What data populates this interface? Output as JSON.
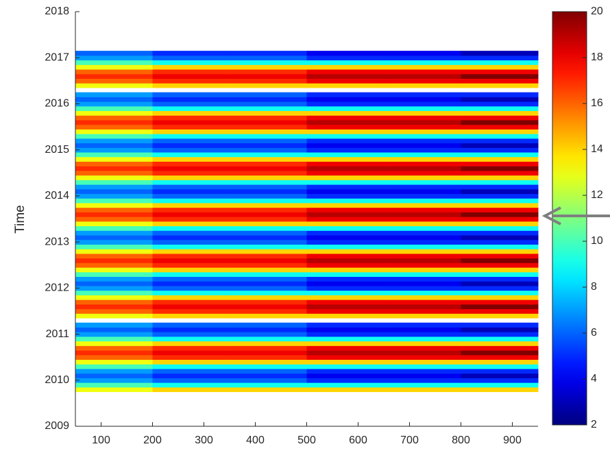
{
  "chart_data": {
    "type": "heatmap",
    "y_label": "Time",
    "colormap": "jet",
    "x": [
      125,
      275,
      425,
      575,
      725,
      875
    ],
    "y": [
      2009.8,
      2009.9,
      2010.0,
      2010.1,
      2010.2,
      2010.3,
      2010.4,
      2010.5,
      2010.6,
      2010.7,
      2010.8,
      2010.9,
      2011.0,
      2011.1,
      2011.2,
      2011.3,
      2011.4,
      2011.5,
      2011.6,
      2011.7,
      2011.8,
      2011.9,
      2012.0,
      2012.1,
      2012.2,
      2012.3,
      2012.4,
      2012.5,
      2012.6,
      2012.7,
      2012.8,
      2012.9,
      2013.0,
      2013.1,
      2013.2,
      2013.3,
      2013.4,
      2013.5,
      2013.6,
      2013.7,
      2013.8,
      2013.9,
      2014.0,
      2014.1,
      2014.2,
      2014.3,
      2014.4,
      2014.5,
      2014.6,
      2014.7,
      2014.8,
      2014.9,
      2015.0,
      2015.1,
      2015.2,
      2015.3,
      2015.4,
      2015.5,
      2015.6,
      2015.7,
      2015.8,
      2015.9,
      2016.0,
      2016.1,
      2016.2,
      2016.3,
      2016.4,
      2016.5,
      2016.6,
      2016.7,
      2016.8,
      2016.9,
      2017.0,
      2017.1
    ],
    "z": [
      [
        13,
        14,
        14,
        14,
        14,
        14
      ],
      [
        10,
        9,
        9,
        9,
        9,
        9
      ],
      [
        7,
        6,
        6,
        5,
        5,
        5
      ],
      [
        6,
        5,
        5,
        4,
        4,
        3
      ],
      [
        7,
        6,
        6,
        5,
        5,
        5
      ],
      [
        10,
        9,
        9,
        9,
        9,
        9
      ],
      [
        13,
        14,
        14,
        14,
        14,
        14
      ],
      [
        16,
        17,
        17,
        18,
        18,
        18
      ],
      [
        17,
        18,
        18,
        19,
        19,
        20
      ],
      [
        16,
        17,
        17,
        18,
        18,
        18
      ],
      [
        13,
        14,
        14,
        14,
        14,
        14
      ],
      [
        10,
        9,
        9,
        9,
        9,
        9
      ],
      [
        7,
        6,
        6,
        5,
        5,
        5
      ],
      [
        6,
        5,
        5,
        4,
        4,
        3
      ],
      [
        7,
        6,
        6,
        5,
        5,
        5
      ],
      [
        null,
        null,
        null,
        null,
        null,
        null
      ],
      [
        13,
        14,
        14,
        14,
        14,
        14
      ],
      [
        16,
        17,
        17,
        18,
        18,
        18
      ],
      [
        17,
        18,
        18,
        19,
        19,
        20
      ],
      [
        16,
        17,
        17,
        18,
        18,
        18
      ],
      [
        13,
        14,
        14,
        14,
        14,
        14
      ],
      [
        10,
        9,
        9,
        9,
        9,
        9
      ],
      [
        7,
        6,
        6,
        5,
        5,
        5
      ],
      [
        6,
        5,
        5,
        4,
        4,
        3
      ],
      [
        7,
        6,
        6,
        5,
        5,
        5
      ],
      [
        10,
        9,
        9,
        9,
        9,
        9
      ],
      [
        13,
        14,
        14,
        14,
        14,
        14
      ],
      [
        16,
        17,
        17,
        18,
        18,
        18
      ],
      [
        17,
        18,
        18,
        19,
        19,
        20
      ],
      [
        16,
        17,
        17,
        18,
        18,
        18
      ],
      [
        13,
        14,
        14,
        14,
        14,
        14
      ],
      [
        10,
        9,
        9,
        9,
        9,
        9
      ],
      [
        7,
        6,
        6,
        5,
        5,
        5
      ],
      [
        6,
        5,
        5,
        4,
        4,
        3
      ],
      [
        7,
        6,
        6,
        5,
        5,
        5
      ],
      [
        10,
        9,
        9,
        9,
        9,
        9
      ],
      [
        13,
        14,
        14,
        14,
        14,
        14
      ],
      [
        16,
        17,
        17,
        18,
        18,
        18
      ],
      [
        17,
        18,
        18,
        19,
        19,
        20
      ],
      [
        16,
        17,
        17,
        18,
        18,
        18
      ],
      [
        13,
        14,
        14,
        14,
        14,
        14
      ],
      [
        10,
        9,
        9,
        9,
        9,
        9
      ],
      [
        7,
        6,
        6,
        5,
        5,
        5
      ],
      [
        6,
        5,
        5,
        4,
        4,
        3
      ],
      [
        7,
        6,
        6,
        5,
        5,
        5
      ],
      [
        10,
        9,
        9,
        9,
        9,
        9
      ],
      [
        13,
        14,
        14,
        14,
        14,
        14
      ],
      [
        16,
        17,
        17,
        18,
        18,
        18
      ],
      [
        17,
        18,
        18,
        19,
        19,
        20
      ],
      [
        16,
        17,
        17,
        18,
        18,
        18
      ],
      [
        13,
        14,
        14,
        14,
        14,
        14
      ],
      [
        10,
        9,
        9,
        9,
        9,
        9
      ],
      [
        7,
        6,
        6,
        5,
        5,
        5
      ],
      [
        6,
        5,
        5,
        4,
        4,
        3
      ],
      [
        7,
        6,
        6,
        5,
        5,
        5
      ],
      [
        10,
        9,
        9,
        9,
        9,
        9
      ],
      [
        13,
        14,
        14,
        14,
        14,
        14
      ],
      [
        16,
        17,
        17,
        18,
        18,
        18
      ],
      [
        17,
        18,
        18,
        19,
        19,
        20
      ],
      [
        16,
        17,
        17,
        18,
        18,
        18
      ],
      [
        13,
        14,
        14,
        14,
        14,
        14
      ],
      [
        10,
        9,
        9,
        9,
        9,
        9
      ],
      [
        7,
        6,
        6,
        5,
        5,
        5
      ],
      [
        6,
        5,
        5,
        4,
        4,
        3
      ],
      [
        7,
        6,
        6,
        5,
        5,
        5
      ],
      [
        null,
        null,
        null,
        null,
        null,
        null
      ],
      [
        13,
        14,
        14,
        14,
        14,
        14
      ],
      [
        16,
        17,
        17,
        18,
        18,
        18
      ],
      [
        17,
        18,
        18,
        19,
        19,
        20
      ],
      [
        16,
        17,
        17,
        18,
        18,
        18
      ],
      [
        13,
        14,
        14,
        14,
        14,
        14
      ],
      [
        10,
        9,
        9,
        9,
        9,
        9
      ],
      [
        7,
        6,
        6,
        5,
        5,
        5
      ],
      [
        6,
        5,
        5,
        4,
        4,
        3
      ]
    ],
    "xlim": [
      50,
      950
    ],
    "xticks": [
      100,
      200,
      300,
      400,
      500,
      600,
      700,
      800,
      900
    ],
    "ylim": [
      2009,
      2018
    ],
    "yticks": [
      2009,
      2010,
      2011,
      2012,
      2013,
      2014,
      2015,
      2016,
      2017,
      2018
    ],
    "clim": [
      2,
      20
    ],
    "cticks": [
      2,
      4,
      6,
      8,
      10,
      12,
      14,
      16,
      18,
      20
    ]
  }
}
